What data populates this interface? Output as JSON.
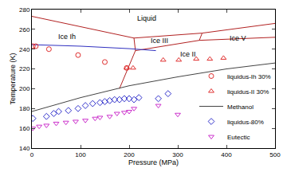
{
  "chart_data": {
    "type": "scatter",
    "x_label": "Pressure (MPa)",
    "y_label": "Temperature (K)",
    "xlim": [
      0,
      500
    ],
    "ylim": [
      140,
      280
    ],
    "xticks": [
      0,
      100,
      200,
      300,
      400,
      500
    ],
    "yticks": [
      140,
      160,
      180,
      200,
      220,
      240,
      260,
      280
    ],
    "grid": false,
    "legend": "bottom right",
    "annotations": [
      {
        "text": "Liquid",
        "x": 236,
        "y": 271
      },
      {
        "text": "Ice Ih",
        "x": 72,
        "y": 253
      },
      {
        "text": "Ice III",
        "x": 262,
        "y": 249
      },
      {
        "text": "Ice II",
        "x": 322,
        "y": 235
      },
      {
        "text": "Ice V",
        "x": 424,
        "y": 251
      }
    ],
    "series": [
      {
        "type": "line",
        "color": "#b22222",
        "line_style": "solid",
        "x": [
          0,
          209.9
        ],
        "y": [
          273.15,
          251.2
        ]
      },
      {
        "type": "line",
        "color": "#b22222",
        "line_style": "solid",
        "x": [
          209.9,
          212.9
        ],
        "y": [
          251.2,
          238.5
        ]
      },
      {
        "type": "line",
        "color": "#b22222",
        "line_style": "solid",
        "x": [
          209.9,
          350.1
        ],
        "y": [
          251.2,
          256.2
        ]
      },
      {
        "type": "line",
        "color": "#b22222",
        "line_style": "solid",
        "x": [
          350.1,
          500
        ],
        "y": [
          256.2,
          266
        ]
      },
      {
        "type": "line",
        "color": "#b22222",
        "line_style": "solid",
        "x": [
          350.1,
          344.3
        ],
        "y": [
          256.2,
          248.9
        ]
      },
      {
        "type": "line",
        "color": "#b22222",
        "line_style": "solid",
        "x": [
          212.9,
          344.3
        ],
        "y": [
          238.5,
          248.9
        ]
      },
      {
        "type": "line",
        "color": "#b22222",
        "line_style": "solid",
        "x": [
          344.3,
          500
        ],
        "y": [
          248.9,
          252
        ]
      },
      {
        "type": "line",
        "color": "#b22222",
        "line_style": "solid",
        "x": [
          212.9,
          195,
          180
        ],
        "y": [
          238.5,
          218,
          200
        ]
      },
      {
        "type": "line",
        "color": "#3030c0",
        "line_style": "solid",
        "x": [
          0,
          100,
          200,
          255
        ],
        "y": [
          244.5,
          243,
          240.5,
          238.5
        ]
      },
      {
        "name": "liquidus-Ih 30%",
        "type": "scatter",
        "marker": "circle-open",
        "color": "#e03030",
        "x": [
          2,
          8,
          35,
          95,
          150,
          195
        ],
        "y": [
          243,
          243,
          240,
          234,
          227,
          221
        ]
      },
      {
        "name": "liquidus-II 30%",
        "type": "scatter",
        "marker": "triangle-up-open",
        "color": "#e03030",
        "x": [
          195,
          208,
          270,
          302,
          338,
          366,
          394
        ],
        "y": [
          221,
          221,
          229,
          229,
          230,
          230,
          231
        ]
      },
      {
        "name": "Methanol",
        "type": "line",
        "line_style": "solid",
        "color": "#444444",
        "x": [
          0,
          100,
          200,
          300,
          400,
          500
        ],
        "y": [
          177,
          191,
          203,
          212,
          220,
          226
        ]
      },
      {
        "name": "liquidus-80%",
        "type": "scatter",
        "marker": "diamond-open",
        "color": "#3333cc",
        "x": [
          2,
          30,
          45,
          55,
          75,
          95,
          110,
          125,
          140,
          150,
          160,
          170,
          180,
          190,
          200,
          210,
          220,
          260,
          280
        ],
        "y": [
          170,
          172,
          175,
          177,
          178,
          180,
          183,
          185,
          186,
          187,
          188,
          189,
          189,
          190,
          190,
          189,
          191,
          190,
          195
        ]
      },
      {
        "name": "Eutectic",
        "type": "scatter",
        "marker": "triangle-down-open",
        "color": "#cc33cc",
        "x": [
          2,
          15,
          30,
          50,
          70,
          90,
          110,
          130,
          140,
          160,
          175,
          190,
          200,
          210,
          260,
          300
        ],
        "y": [
          160,
          162,
          163,
          165,
          166,
          167,
          168,
          170,
          171,
          172,
          175,
          176,
          177,
          180,
          183,
          174
        ]
      }
    ]
  }
}
